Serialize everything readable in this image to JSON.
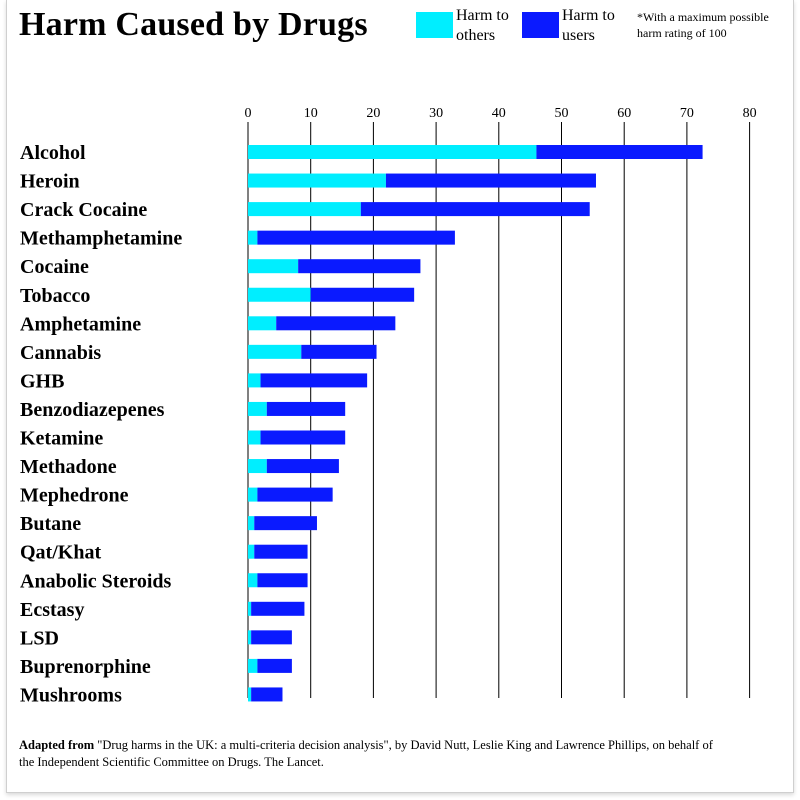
{
  "title": "Harm Caused by Drugs",
  "legend": {
    "others_label_1": "Harm to",
    "others_label_2": "others",
    "users_label_1": "Harm to",
    "users_label_2": "users"
  },
  "note": "*With a maximum possible harm rating of 100",
  "source": {
    "bold": "Adapted from",
    "text": " \"Drug harms in the UK: a multi-criteria decision analysis\", by David Nutt, Leslie King and Lawrence Phillips, on behalf of the Independent Scientific Committee on Drugs. The Lancet."
  },
  "colors": {
    "others": "#00eeff",
    "users": "#0a1aff"
  },
  "chart_data": {
    "type": "bar",
    "orientation": "horizontal",
    "stacked": true,
    "categories": [
      "Alcohol",
      "Heroin",
      "Crack Cocaine",
      "Methamphetamine",
      "Cocaine",
      "Tobacco",
      "Amphetamine",
      "Cannabis",
      "GHB",
      "Benzodiazepenes",
      "Ketamine",
      "Methadone",
      "Mephedrone",
      "Butane",
      "Qat/Khat",
      "Anabolic Steroids",
      "Ecstasy",
      "LSD",
      "Buprenorphine",
      "Mushrooms"
    ],
    "series": [
      {
        "name": "Harm to others",
        "values": [
          46,
          22,
          18,
          1.5,
          8,
          10,
          4.5,
          8.5,
          2,
          3,
          2,
          3,
          1.5,
          1,
          1,
          1.5,
          0.5,
          0.5,
          1.5,
          0.5
        ]
      },
      {
        "name": "Harm to users",
        "values": [
          26.5,
          33.5,
          36.5,
          31.5,
          19.5,
          16.5,
          19,
          12,
          17,
          12.5,
          13.5,
          11.5,
          12,
          10,
          8.5,
          8,
          8.5,
          6.5,
          5.5,
          5
        ]
      }
    ],
    "xlim": [
      0,
      80
    ],
    "ticks": [
      0,
      10,
      20,
      30,
      40,
      50,
      60,
      70,
      80
    ],
    "grid": true
  }
}
